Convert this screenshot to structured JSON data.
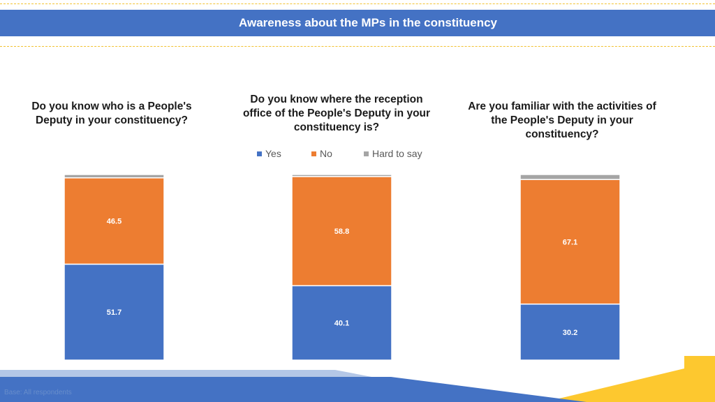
{
  "header": {
    "title": "Awareness about the MPs in the constituency"
  },
  "colors": {
    "yes": "#4472c4",
    "no": "#ed7d31",
    "hard": "#a5a5a5",
    "band": "#4472c4",
    "accent": "#f2c230"
  },
  "legend": [
    {
      "label": "Yes",
      "color": "#4472c4"
    },
    {
      "label": "No",
      "color": "#ed7d31"
    },
    {
      "label": "Hard to say",
      "color": "#a5a5a5"
    }
  ],
  "questions": [
    "Do you know who is a People's Deputy in your constituency?",
    "Do you know where the reception office of the People's Deputy in your constituency is?",
    "Are you familiar with the activities of the People's Deputy in your constituency?"
  ],
  "footer": {
    "source": "Base: All respondents"
  },
  "chart_data": {
    "type": "bar",
    "stacked": true,
    "categories": [
      "Do you know who is a People's Deputy in your constituency?",
      "Do you know where the reception office of the People's Deputy in your constituency is?",
      "Are you familiar with the activities of the People's Deputy in your constituency?"
    ],
    "series": [
      {
        "name": "Yes",
        "values": [
          51.7,
          40.1,
          30.2
        ],
        "labels": [
          "51.7",
          "40.1",
          "30.2"
        ]
      },
      {
        "name": "No",
        "values": [
          46.5,
          58.8,
          67.1
        ],
        "labels": [
          "46.5",
          "58.8",
          "67.1"
        ]
      },
      {
        "name": "Hard to say",
        "values": [
          1.8,
          1.1,
          2.7
        ]
      }
    ],
    "ylim": [
      0,
      100
    ],
    "legend_position": "top-center",
    "title": "Awareness about the MPs in the constituency"
  }
}
